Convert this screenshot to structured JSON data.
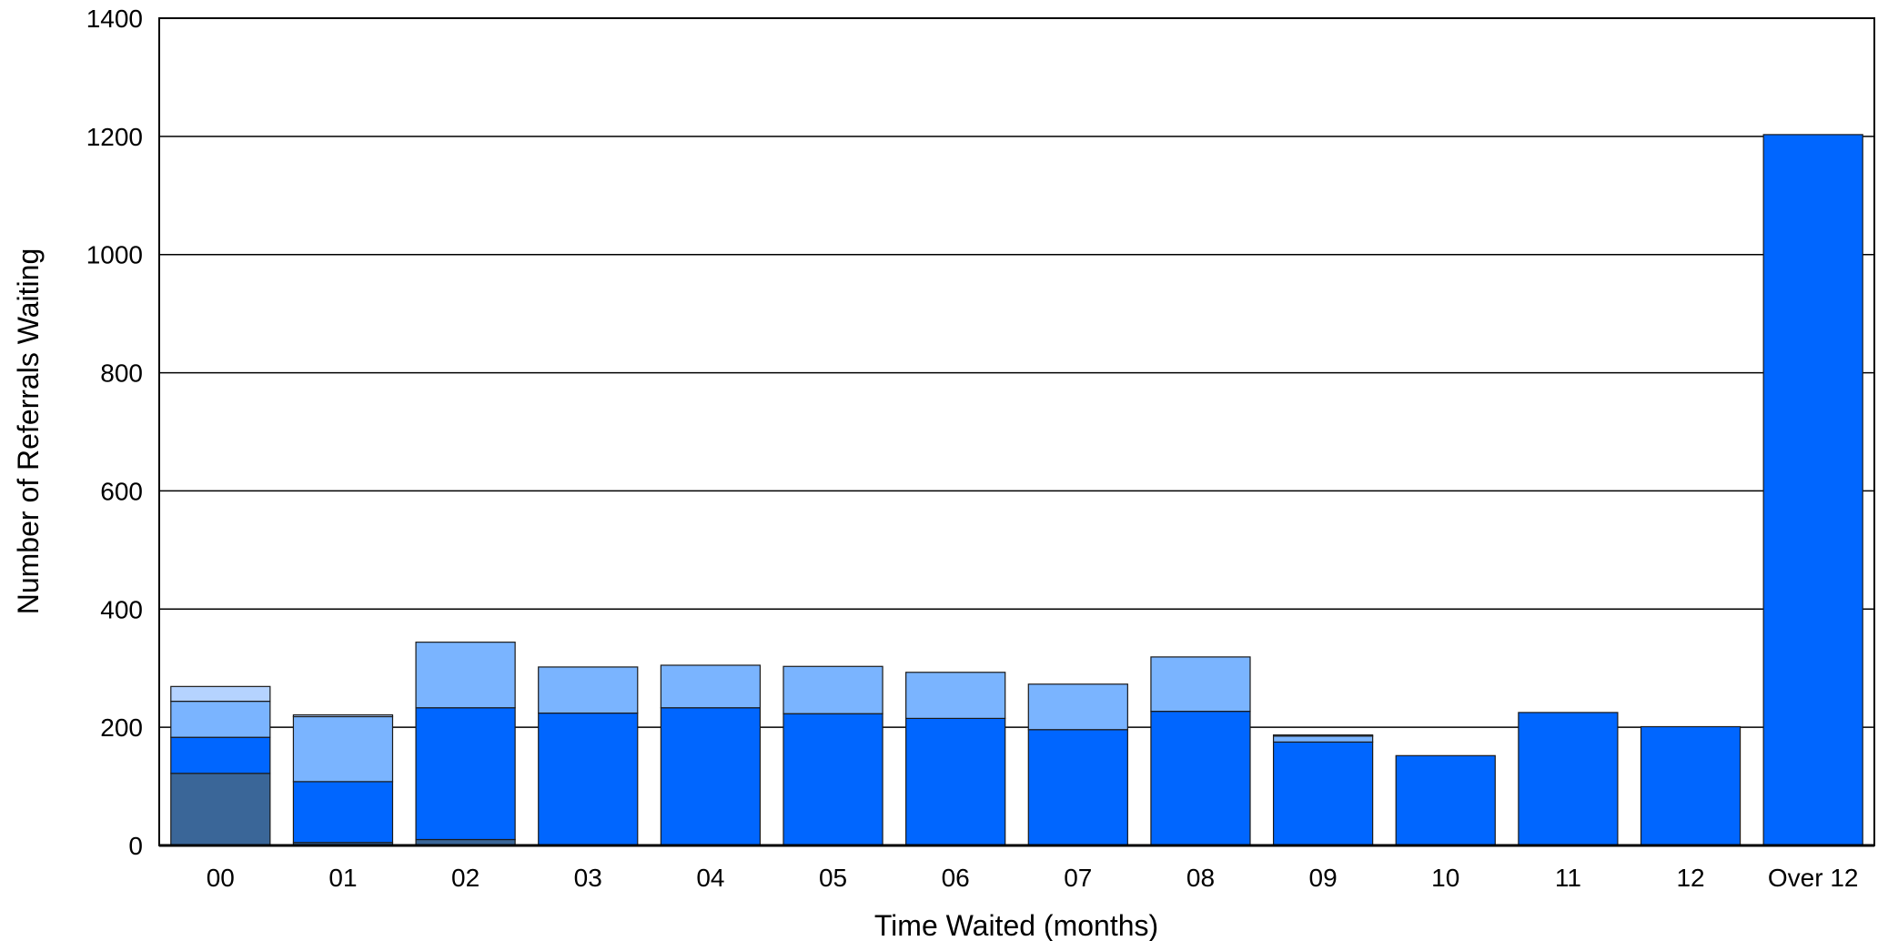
{
  "chart_data": {
    "type": "bar",
    "stacked": true,
    "title": "",
    "xlabel": "Time Waited (months)",
    "ylabel": "Number of Referrals Waiting",
    "ylim": [
      0,
      1400
    ],
    "yticks": [
      0,
      200,
      400,
      600,
      800,
      1000,
      1200,
      1400
    ],
    "grid": true,
    "legend": "none",
    "categories": [
      "00",
      "01",
      "02",
      "03",
      "04",
      "05",
      "06",
      "07",
      "08",
      "09",
      "10",
      "11",
      "12",
      "Over 12"
    ],
    "series": [
      {
        "color": "#3a6698",
        "values": [
          122,
          5,
          10,
          0,
          0,
          0,
          0,
          0,
          0,
          0,
          0,
          0,
          0,
          0
        ]
      },
      {
        "color": "#0066ff",
        "values": [
          61,
          103,
          223,
          224,
          233,
          223,
          215,
          196,
          227,
          175,
          152,
          225,
          201,
          1203
        ]
      },
      {
        "color": "#7ab4ff",
        "values": [
          61,
          110,
          111,
          78,
          72,
          80,
          78,
          77,
          92,
          10,
          0,
          0,
          0,
          0
        ]
      },
      {
        "color": "#b5d3ff",
        "values": [
          25,
          3,
          0,
          0,
          0,
          0,
          0,
          0,
          0,
          2,
          0,
          0,
          0,
          0
        ]
      }
    ]
  }
}
